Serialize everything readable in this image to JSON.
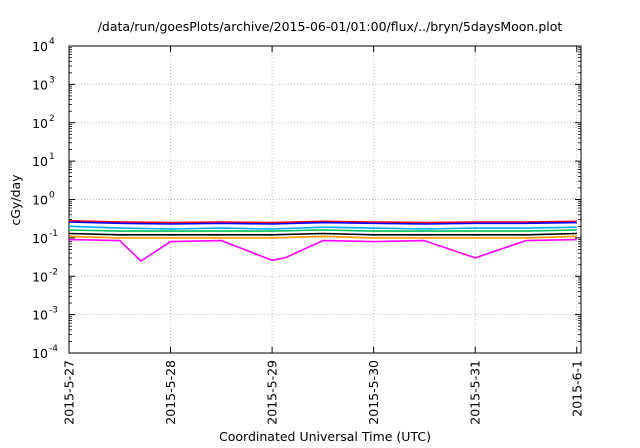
{
  "chart_data": {
    "type": "line",
    "title": "/data/run/goesPlots/archive/2015-06-01/01:00/flux/../bryn/5daysMoon.plot",
    "xlabel": "Coordinated Universal Time (UTC)",
    "ylabel": "cGy/day",
    "yscale": "log",
    "ylim": [
      0.0001,
      10000
    ],
    "xlim": [
      "2015-05-27 00:00",
      "2015-06-01 01:00"
    ],
    "grid": true,
    "legend": "none",
    "x_ticks": [
      {
        "date": "2015-05-27",
        "label": "2015-5-27"
      },
      {
        "date": "2015-05-28",
        "label": "2015-5-28"
      },
      {
        "date": "2015-05-29",
        "label": "2015-5-29"
      },
      {
        "date": "2015-05-30",
        "label": "2015-5-30"
      },
      {
        "date": "2015-05-31",
        "label": "2015-5-31"
      },
      {
        "date": "2015-06-01",
        "label": "2015-6-1"
      }
    ],
    "y_ticks": [
      {
        "base": "10",
        "exp": "4"
      },
      {
        "base": "10",
        "exp": "3"
      },
      {
        "base": "10",
        "exp": "2"
      },
      {
        "base": "10",
        "exp": "1"
      },
      {
        "base": "10",
        "exp": "0"
      },
      {
        "base": "10",
        "exp": "-1"
      },
      {
        "base": "10",
        "exp": "-2"
      },
      {
        "base": "10",
        "exp": "-3"
      },
      {
        "base": "10",
        "exp": "-4"
      }
    ],
    "series": [
      {
        "color": "#ff0000",
        "x": [
          "2015-05-27 00:00",
          "2015-05-27 12:00",
          "2015-05-28 00:00",
          "2015-05-28 12:00",
          "2015-05-29 00:00",
          "2015-05-29 12:00",
          "2015-05-30 00:00",
          "2015-05-30 12:00",
          "2015-05-31 00:00",
          "2015-05-31 12:00",
          "2015-06-01 00:00"
        ],
        "values": [
          0.28,
          0.26,
          0.25,
          0.26,
          0.25,
          0.27,
          0.26,
          0.25,
          0.26,
          0.26,
          0.27
        ]
      },
      {
        "color": "#0000ff",
        "x": [
          "2015-05-27 00:00",
          "2015-05-27 12:00",
          "2015-05-28 00:00",
          "2015-05-28 12:00",
          "2015-05-29 00:00",
          "2015-05-29 12:00",
          "2015-05-30 00:00",
          "2015-05-30 12:00",
          "2015-05-31 00:00",
          "2015-05-31 12:00",
          "2015-06-01 00:00"
        ],
        "values": [
          0.26,
          0.24,
          0.23,
          0.24,
          0.23,
          0.25,
          0.24,
          0.23,
          0.24,
          0.24,
          0.25
        ]
      },
      {
        "color": "#00aaff",
        "x": [
          "2015-05-27 00:00",
          "2015-05-27 12:00",
          "2015-05-28 00:00",
          "2015-05-28 12:00",
          "2015-05-29 00:00",
          "2015-05-29 12:00",
          "2015-05-30 00:00",
          "2015-05-30 12:00",
          "2015-05-31 00:00",
          "2015-05-31 12:00",
          "2015-06-01 00:00"
        ],
        "values": [
          0.2,
          0.18,
          0.17,
          0.18,
          0.17,
          0.19,
          0.18,
          0.17,
          0.18,
          0.18,
          0.19
        ]
      },
      {
        "color": "#00c060",
        "x": [
          "2015-05-27 00:00",
          "2015-05-27 12:00",
          "2015-05-28 00:00",
          "2015-05-28 12:00",
          "2015-05-29 00:00",
          "2015-05-29 12:00",
          "2015-05-30 00:00",
          "2015-05-30 12:00",
          "2015-05-31 00:00",
          "2015-05-31 12:00",
          "2015-06-01 00:00"
        ],
        "values": [
          0.16,
          0.15,
          0.15,
          0.15,
          0.15,
          0.16,
          0.15,
          0.15,
          0.15,
          0.15,
          0.16
        ]
      },
      {
        "color": "#000000",
        "x": [
          "2015-05-27 00:00",
          "2015-05-27 12:00",
          "2015-05-28 00:00",
          "2015-05-28 12:00",
          "2015-05-29 00:00",
          "2015-05-29 12:00",
          "2015-05-30 00:00",
          "2015-05-30 12:00",
          "2015-05-31 00:00",
          "2015-05-31 12:00",
          "2015-06-01 00:00"
        ],
        "values": [
          0.13,
          0.12,
          0.12,
          0.12,
          0.12,
          0.13,
          0.12,
          0.12,
          0.12,
          0.12,
          0.13
        ]
      },
      {
        "color": "#ff9900",
        "x": [
          "2015-05-27 00:00",
          "2015-05-27 12:00",
          "2015-05-28 00:00",
          "2015-05-28 12:00",
          "2015-05-29 00:00",
          "2015-05-29 12:00",
          "2015-05-30 00:00",
          "2015-05-30 12:00",
          "2015-05-31 00:00",
          "2015-05-31 12:00",
          "2015-06-01 00:00"
        ],
        "values": [
          0.11,
          0.1,
          0.1,
          0.1,
          0.1,
          0.11,
          0.1,
          0.1,
          0.1,
          0.1,
          0.11
        ]
      },
      {
        "color": "#ff00ff",
        "x": [
          "2015-05-27 00:00",
          "2015-05-27 12:00",
          "2015-05-27 17:00",
          "2015-05-28 00:00",
          "2015-05-28 12:00",
          "2015-05-29 00:00",
          "2015-05-29 03:00",
          "2015-05-29 12:00",
          "2015-05-30 00:00",
          "2015-05-30 12:00",
          "2015-05-31 00:00",
          "2015-05-31 12:00",
          "2015-06-01 00:00"
        ],
        "values": [
          0.09,
          0.085,
          0.025,
          0.08,
          0.085,
          0.026,
          0.03,
          0.085,
          0.08,
          0.085,
          0.03,
          0.085,
          0.09
        ]
      }
    ]
  }
}
